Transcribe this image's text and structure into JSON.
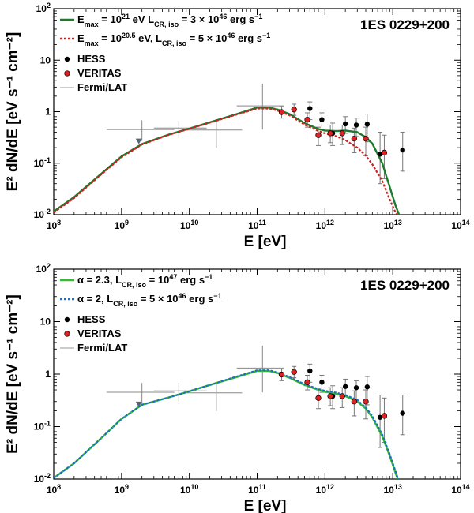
{
  "chart_data": [
    {
      "type": "line",
      "source_label": "1ES 0229+200",
      "xlabel": "E [eV]",
      "ylabel": "E² dN/dE [eV s⁻¹ cm⁻²]",
      "xscale": "log",
      "yscale": "log",
      "xlim": [
        100000000.0,
        100000000000000.0
      ],
      "ylim": [
        0.01,
        100
      ],
      "x_ticks": [
        {
          "base": "10",
          "exp": "8"
        },
        {
          "base": "10",
          "exp": "9"
        },
        {
          "base": "10",
          "exp": "10"
        },
        {
          "base": "10",
          "exp": "11"
        },
        {
          "base": "10",
          "exp": "12"
        },
        {
          "base": "10",
          "exp": "13"
        },
        {
          "base": "10",
          "exp": "14"
        }
      ],
      "y_ticks": [
        {
          "base": "10",
          "exp": "-2"
        },
        {
          "base": "10",
          "exp": "-1"
        },
        {
          "base": "1",
          "exp": ""
        },
        {
          "base": "10",
          "exp": ""
        },
        {
          "base": "10",
          "exp": "2"
        }
      ],
      "legend_position": "top-left",
      "series": [
        {
          "name": "Emax = 10^21 eV  LCR,iso = 3 × 10^46 erg s^-1",
          "label_parts": [
            "E",
            "max",
            " = 10",
            "21",
            " eV  L",
            "CR, iso",
            " = 3 × 10",
            "46",
            " erg s",
            "−1"
          ],
          "color": "#1f7a2e",
          "style": "solid",
          "x": [
            100000000.0,
            200000000.0,
            500000000.0,
            1000000000.0,
            2000000000.0,
            5000000000.0,
            10000000000.0,
            20000000000.0,
            50000000000.0,
            100000000000.0,
            150000000000.0,
            200000000000.0,
            300000000000.0,
            500000000000.0,
            800000000000.0,
            1000000000000.0,
            1500000000000.0,
            2000000000000.0,
            3000000000000.0,
            4000000000000.0,
            5000000000000.0,
            7000000000000.0,
            9000000000000.0,
            11000000000000.0,
            13000000000000.0
          ],
          "y": [
            0.0115,
            0.022,
            0.062,
            0.135,
            0.235,
            0.36,
            0.47,
            0.62,
            0.9,
            1.2,
            1.2,
            1.1,
            0.9,
            0.6,
            0.46,
            0.43,
            0.42,
            0.43,
            0.4,
            0.32,
            0.24,
            0.1,
            0.035,
            0.015,
            0.0085
          ]
        },
        {
          "name": "Emax = 10^20.5 eV, LCR,iso = 5 × 10^46 erg s^-1",
          "label_parts": [
            "E",
            "max",
            " = 10",
            "20.5",
            " eV, L",
            "CR, iso",
            " = 5 × 10",
            "46",
            " erg s",
            "−1"
          ],
          "color": "#cc2222",
          "style": "dotted",
          "x": [
            100000000.0,
            200000000.0,
            500000000.0,
            1000000000.0,
            2000000000.0,
            5000000000.0,
            10000000000.0,
            20000000000.0,
            50000000000.0,
            100000000000.0,
            150000000000.0,
            200000000000.0,
            300000000000.0,
            500000000000.0,
            800000000000.0,
            1000000000000.0,
            1500000000000.0,
            2000000000000.0,
            3000000000000.0,
            4000000000000.0,
            5000000000000.0,
            7000000000000.0,
            9000000000000.0,
            11000000000000.0,
            13000000000000.0
          ],
          "y": [
            0.011,
            0.021,
            0.06,
            0.13,
            0.23,
            0.355,
            0.465,
            0.61,
            0.88,
            1.15,
            1.15,
            1.05,
            0.85,
            0.56,
            0.42,
            0.38,
            0.33,
            0.28,
            0.2,
            0.14,
            0.095,
            0.045,
            0.02,
            0.011,
            0.0085
          ]
        }
      ],
      "points": {
        "fermi": {
          "name": "Fermi/LAT",
          "color": "#888888",
          "bins": [
            {
              "x": 2000000000.0,
              "xlo": 600000000.0,
              "xhi": 6000000000.0,
              "y": 0.45,
              "ylo": 0.27,
              "yhi": 0.68
            },
            {
              "x": 7000000000.0,
              "xlo": 3000000000.0,
              "xhi": 18000000000.0,
              "y": 0.48,
              "ylo": 0.3,
              "yhi": 0.68
            },
            {
              "x": 25000000000.0,
              "xlo": 9000000000.0,
              "xhi": 60000000000.0,
              "y": 0.44,
              "ylo": 0.2,
              "yhi": 0.7
            },
            {
              "x": 120000000000.0,
              "xlo": 50000000000.0,
              "xhi": 250000000000.0,
              "y": 1.3,
              "ylo": 0.45,
              "yhi": 3.5
            }
          ],
          "upper_limit": {
            "x": 1800000000.0,
            "y": 0.27
          }
        },
        "hess": {
          "name": "HESS",
          "color": "#000000",
          "data": [
            {
              "x": 600000000000.0,
              "y": 1.15,
              "ylo": 0.7,
              "yhi": 1.55
            },
            {
              "x": 900000000000.0,
              "y": 0.7,
              "ylo": 0.45,
              "yhi": 0.95
            },
            {
              "x": 1300000000000.0,
              "y": 0.38,
              "ylo": 0.22,
              "yhi": 0.6
            },
            {
              "x": 2000000000000.0,
              "y": 0.58,
              "ylo": 0.38,
              "yhi": 0.8
            },
            {
              "x": 2900000000000.0,
              "y": 0.55,
              "ylo": 0.33,
              "yhi": 0.75
            },
            {
              "x": 4200000000000.0,
              "y": 0.57,
              "ylo": 0.26,
              "yhi": 0.9
            },
            {
              "x": 6500000000000.0,
              "y": 0.15,
              "ylo": 0.04,
              "yhi": 0.4
            },
            {
              "x": 14000000000000.0,
              "y": 0.18,
              "ylo": 0.07,
              "yhi": 0.4
            }
          ]
        },
        "veritas": {
          "name": "VERITAS",
          "color": "#dd2222",
          "data": [
            {
              "x": 230000000000.0,
              "y": 0.98,
              "ylo": 0.75,
              "yhi": 1.25
            },
            {
              "x": 350000000000.0,
              "y": 1.1,
              "ylo": 0.85,
              "yhi": 1.4
            },
            {
              "x": 550000000000.0,
              "y": 0.7,
              "ylo": 0.5,
              "yhi": 0.95
            },
            {
              "x": 800000000000.0,
              "y": 0.35,
              "ylo": 0.22,
              "yhi": 0.5
            },
            {
              "x": 1200000000000.0,
              "y": 0.38,
              "ylo": 0.25,
              "yhi": 0.55
            },
            {
              "x": 1800000000000.0,
              "y": 0.38,
              "ylo": 0.23,
              "yhi": 0.55
            },
            {
              "x": 2700000000000.0,
              "y": 0.3,
              "ylo": 0.16,
              "yhi": 0.48
            },
            {
              "x": 4000000000000.0,
              "y": 0.3,
              "ylo": 0.14,
              "yhi": 0.5
            },
            {
              "x": 7500000000000.0,
              "y": 0.16,
              "ylo": 0.05,
              "yhi": 0.35
            }
          ]
        }
      }
    },
    {
      "type": "line",
      "source_label": "1ES 0229+200",
      "xlabel": "E [eV]",
      "ylabel": "E² dN/dE [eV s⁻¹ cm⁻²]",
      "xscale": "log",
      "yscale": "log",
      "xlim": [
        100000000.0,
        100000000000000.0
      ],
      "ylim": [
        0.01,
        100
      ],
      "x_ticks": [
        {
          "base": "10",
          "exp": "8"
        },
        {
          "base": "10",
          "exp": "9"
        },
        {
          "base": "10",
          "exp": "10"
        },
        {
          "base": "10",
          "exp": "11"
        },
        {
          "base": "10",
          "exp": "12"
        },
        {
          "base": "10",
          "exp": "13"
        },
        {
          "base": "10",
          "exp": "14"
        }
      ],
      "y_ticks": [
        {
          "base": "10",
          "exp": "-2"
        },
        {
          "base": "10",
          "exp": "-1"
        },
        {
          "base": "1",
          "exp": ""
        },
        {
          "base": "10",
          "exp": ""
        },
        {
          "base": "10",
          "exp": "2"
        }
      ],
      "legend_position": "top-left",
      "series": [
        {
          "name": "α = 2.3, LCR,iso = 10^47 erg s^-1",
          "label_parts": [
            "α = 2.3, L",
            "CR, iso",
            " = 10",
            "47",
            " erg s",
            "−1",
            "",
            "",
            "",
            ""
          ],
          "color": "#33bb33",
          "style": "solid",
          "x": [
            100000000.0,
            200000000.0,
            500000000.0,
            1000000000.0,
            2000000000.0,
            5000000000.0,
            10000000000.0,
            20000000000.0,
            50000000000.0,
            100000000000.0,
            150000000000.0,
            200000000000.0,
            300000000000.0,
            500000000000.0,
            800000000000.0,
            1000000000000.0,
            1500000000000.0,
            2000000000000.0,
            3000000000000.0,
            4000000000000.0,
            5000000000000.0,
            7000000000000.0,
            9000000000000.0,
            11000000000000.0,
            12000000000000.0
          ],
          "y": [
            0.0105,
            0.02,
            0.06,
            0.14,
            0.26,
            0.36,
            0.47,
            0.62,
            0.88,
            1.15,
            1.15,
            1.05,
            0.85,
            0.62,
            0.5,
            0.46,
            0.42,
            0.38,
            0.3,
            0.22,
            0.15,
            0.065,
            0.028,
            0.013,
            0.0095
          ]
        },
        {
          "name": "α = 2, LCR,iso = 5 × 10^46 erg s^-1",
          "label_parts": [
            "α = 2, L",
            "CR, iso",
            " = 5 × 10",
            "46",
            " erg s",
            "−1",
            "",
            "",
            "",
            ""
          ],
          "color": "#1f6fc0",
          "style": "dotted",
          "x": [
            100000000.0,
            200000000.0,
            500000000.0,
            1000000000.0,
            2000000000.0,
            5000000000.0,
            10000000000.0,
            20000000000.0,
            50000000000.0,
            100000000000.0,
            150000000000.0,
            200000000000.0,
            300000000000.0,
            500000000000.0,
            800000000000.0,
            1000000000000.0,
            1500000000000.0,
            2000000000000.0,
            3000000000000.0,
            4000000000000.0,
            5000000000000.0,
            7000000000000.0,
            9000000000000.0,
            11000000000000.0,
            12000000000000.0
          ],
          "y": [
            0.0105,
            0.02,
            0.06,
            0.14,
            0.26,
            0.36,
            0.47,
            0.62,
            0.9,
            1.18,
            1.18,
            1.08,
            0.88,
            0.64,
            0.52,
            0.48,
            0.44,
            0.4,
            0.32,
            0.23,
            0.16,
            0.07,
            0.03,
            0.014,
            0.01
          ]
        }
      ],
      "points": {
        "fermi": {
          "name": "Fermi/LAT",
          "color": "#888888",
          "bins": [
            {
              "x": 2000000000.0,
              "xlo": 600000000.0,
              "xhi": 6000000000.0,
              "y": 0.45,
              "ylo": 0.27,
              "yhi": 0.68
            },
            {
              "x": 7000000000.0,
              "xlo": 3000000000.0,
              "xhi": 18000000000.0,
              "y": 0.48,
              "ylo": 0.3,
              "yhi": 0.68
            },
            {
              "x": 25000000000.0,
              "xlo": 9000000000.0,
              "xhi": 60000000000.0,
              "y": 0.44,
              "ylo": 0.2,
              "yhi": 0.7
            },
            {
              "x": 120000000000.0,
              "xlo": 50000000000.0,
              "xhi": 250000000000.0,
              "y": 1.3,
              "ylo": 0.45,
              "yhi": 3.5
            }
          ],
          "upper_limit": {
            "x": 1800000000.0,
            "y": 0.27
          }
        },
        "hess": {
          "name": "HESS",
          "color": "#000000",
          "data": [
            {
              "x": 600000000000.0,
              "y": 1.15,
              "ylo": 0.7,
              "yhi": 1.55
            },
            {
              "x": 900000000000.0,
              "y": 0.7,
              "ylo": 0.45,
              "yhi": 0.95
            },
            {
              "x": 1300000000000.0,
              "y": 0.38,
              "ylo": 0.22,
              "yhi": 0.6
            },
            {
              "x": 2000000000000.0,
              "y": 0.58,
              "ylo": 0.38,
              "yhi": 0.8
            },
            {
              "x": 2900000000000.0,
              "y": 0.55,
              "ylo": 0.33,
              "yhi": 0.75
            },
            {
              "x": 4200000000000.0,
              "y": 0.57,
              "ylo": 0.26,
              "yhi": 0.9
            },
            {
              "x": 6500000000000.0,
              "y": 0.15,
              "ylo": 0.04,
              "yhi": 0.4
            },
            {
              "x": 14000000000000.0,
              "y": 0.18,
              "ylo": 0.07,
              "yhi": 0.4
            }
          ]
        },
        "veritas": {
          "name": "VERITAS",
          "color": "#dd2222",
          "data": [
            {
              "x": 230000000000.0,
              "y": 0.98,
              "ylo": 0.75,
              "yhi": 1.25
            },
            {
              "x": 350000000000.0,
              "y": 1.1,
              "ylo": 0.85,
              "yhi": 1.4
            },
            {
              "x": 550000000000.0,
              "y": 0.7,
              "ylo": 0.5,
              "yhi": 0.95
            },
            {
              "x": 800000000000.0,
              "y": 0.35,
              "ylo": 0.22,
              "yhi": 0.5
            },
            {
              "x": 1200000000000.0,
              "y": 0.38,
              "ylo": 0.25,
              "yhi": 0.55
            },
            {
              "x": 1800000000000.0,
              "y": 0.38,
              "ylo": 0.23,
              "yhi": 0.55
            },
            {
              "x": 2700000000000.0,
              "y": 0.3,
              "ylo": 0.16,
              "yhi": 0.48
            },
            {
              "x": 4000000000000.0,
              "y": 0.3,
              "ylo": 0.14,
              "yhi": 0.5
            },
            {
              "x": 7500000000000.0,
              "y": 0.16,
              "ylo": 0.05,
              "yhi": 0.35
            }
          ]
        }
      }
    }
  ]
}
